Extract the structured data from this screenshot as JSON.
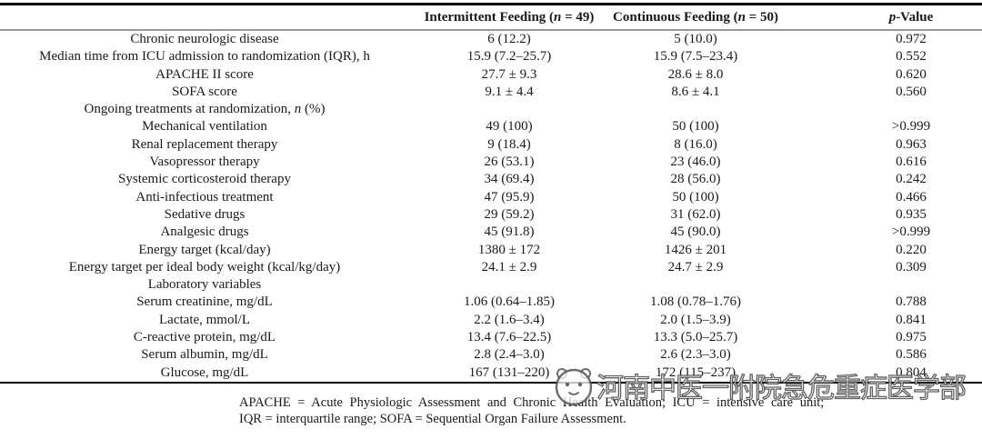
{
  "table": {
    "columns": [
      {
        "parts": [
          {
            "t": ""
          }
        ]
      },
      {
        "parts": [
          {
            "t": "Intermittent Feeding ("
          },
          {
            "t": "n",
            "i": true
          },
          {
            "t": " = 49)"
          }
        ]
      },
      {
        "parts": [
          {
            "t": "Continuous Feeding ("
          },
          {
            "t": "n",
            "i": true
          },
          {
            "t": " = 50)"
          }
        ]
      },
      {
        "parts": [
          {
            "t": "p",
            "i": true
          },
          {
            "t": "-Value"
          }
        ]
      }
    ],
    "rows": [
      {
        "label_parts": [
          {
            "t": "Chronic neurologic disease"
          }
        ],
        "intermittent": "6 (12.2)",
        "continuous": "5 (10.0)",
        "p": "0.972"
      },
      {
        "label_parts": [
          {
            "t": "Median time from ICU admission to randomization (IQR), h"
          }
        ],
        "intermittent": "15.9 (7.2–25.7)",
        "continuous": "15.9 (7.5–23.4)",
        "p": "0.552"
      },
      {
        "label_parts": [
          {
            "t": "APACHE II score"
          }
        ],
        "intermittent": "27.7 ± 9.3",
        "continuous": "28.6 ± 8.0",
        "p": "0.620"
      },
      {
        "label_parts": [
          {
            "t": "SOFA score"
          }
        ],
        "intermittent": "9.1 ± 4.4",
        "continuous": "8.6 ± 4.1",
        "p": "0.560"
      },
      {
        "label_parts": [
          {
            "t": "Ongoing treatments at randomization, "
          },
          {
            "t": "n",
            "i": true
          },
          {
            "t": " (%)"
          }
        ],
        "intermittent": "",
        "continuous": "",
        "p": ""
      },
      {
        "label_parts": [
          {
            "t": "Mechanical ventilation"
          }
        ],
        "intermittent": "49 (100)",
        "continuous": "50 (100)",
        "p": ">0.999"
      },
      {
        "label_parts": [
          {
            "t": "Renal replacement therapy"
          }
        ],
        "intermittent": "9 (18.4)",
        "continuous": "8 (16.0)",
        "p": "0.963"
      },
      {
        "label_parts": [
          {
            "t": "Vasopressor therapy"
          }
        ],
        "intermittent": "26 (53.1)",
        "continuous": "23 (46.0)",
        "p": "0.616"
      },
      {
        "label_parts": [
          {
            "t": "Systemic corticosteroid therapy"
          }
        ],
        "intermittent": "34 (69.4)",
        "continuous": "28 (56.0)",
        "p": "0.242"
      },
      {
        "label_parts": [
          {
            "t": "Anti-infectious treatment"
          }
        ],
        "intermittent": "47 (95.9)",
        "continuous": "50 (100)",
        "p": "0.466"
      },
      {
        "label_parts": [
          {
            "t": "Sedative drugs"
          }
        ],
        "intermittent": "29 (59.2)",
        "continuous": "31 (62.0)",
        "p": "0.935"
      },
      {
        "label_parts": [
          {
            "t": "Analgesic drugs"
          }
        ],
        "intermittent": "45 (91.8)",
        "continuous": "45 (90.0)",
        "p": ">0.999"
      },
      {
        "label_parts": [
          {
            "t": "Energy target (kcal/day)"
          }
        ],
        "intermittent": "1380 ± 172",
        "continuous": "1426 ± 201",
        "p": "0.220"
      },
      {
        "label_parts": [
          {
            "t": "Energy target per ideal body weight (kcal/kg/day)"
          }
        ],
        "intermittent": "24.1 ± 2.9",
        "continuous": "24.7 ± 2.9",
        "p": "0.309"
      },
      {
        "label_parts": [
          {
            "t": "Laboratory variables"
          }
        ],
        "intermittent": "",
        "continuous": "",
        "p": ""
      },
      {
        "label_parts": [
          {
            "t": "Serum creatinine, mg/dL"
          }
        ],
        "intermittent": "1.06 (0.64–1.85)",
        "continuous": "1.08 (0.78–1.76)",
        "p": "0.788"
      },
      {
        "label_parts": [
          {
            "t": "Lactate, mmol/L"
          }
        ],
        "intermittent": "2.2 (1.6–3.4)",
        "continuous": "2.0 (1.5–3.9)",
        "p": "0.841"
      },
      {
        "label_parts": [
          {
            "t": "C-reactive protein, mg/dL"
          }
        ],
        "intermittent": "13.4 (7.6–22.5)",
        "continuous": "13.3 (5.0–25.7)",
        "p": "0.975"
      },
      {
        "label_parts": [
          {
            "t": "Serum albumin, mg/dL"
          }
        ],
        "intermittent": "2.8 (2.4–3.0)",
        "continuous": "2.6 (2.3–3.0)",
        "p": "0.586"
      },
      {
        "label_parts": [
          {
            "t": "Glucose, mg/dL"
          }
        ],
        "intermittent": "167 (131–220)",
        "continuous": "172 (115–237)",
        "p": "0.804"
      }
    ]
  },
  "footnote": {
    "line1": "APACHE = Acute Physiologic Assessment and Chronic Health Evaluation; ICU = intensive care unit;",
    "line2": "IQR = interquartile range; SOFA = Sequential Organ Failure Assessment."
  },
  "watermark": {
    "icon": "panda-face-icon",
    "text": "河南中医一附院急危重症医学部"
  }
}
